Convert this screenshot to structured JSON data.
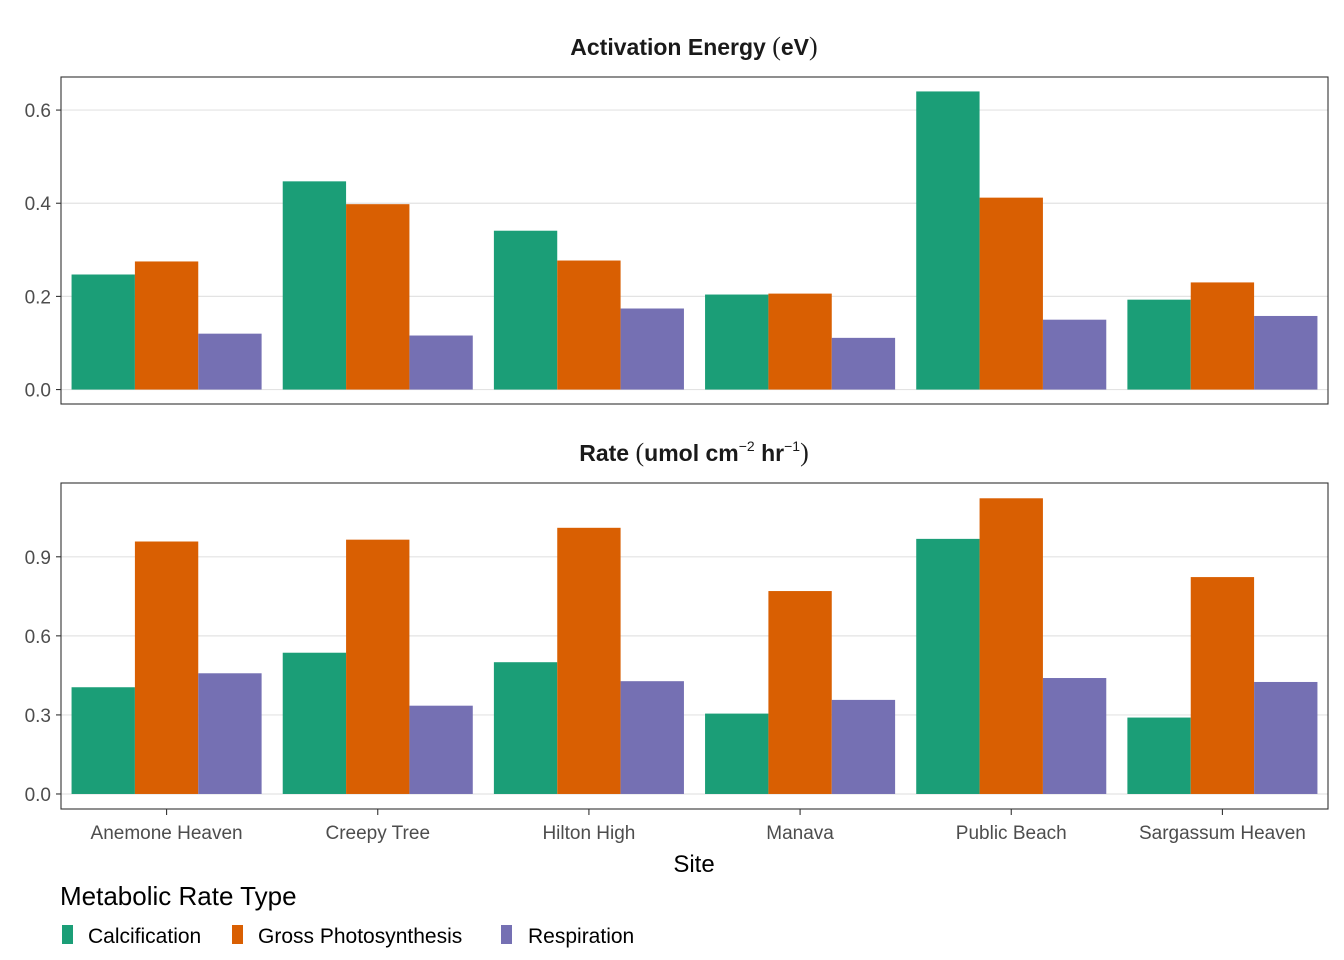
{
  "chart_data": [
    {
      "type": "bar",
      "title_text": "Activation Energy ",
      "title_unit": "eV",
      "categories": [
        "Anemone Heaven",
        "Creepy Tree",
        "Hilton High",
        "Manava",
        "Public Beach",
        "Sargassum Heaven"
      ],
      "series": [
        {
          "name": "Calcification",
          "color": "#1b9e77",
          "values": [
            0.247,
            0.447,
            0.341,
            0.204,
            0.64,
            0.193
          ]
        },
        {
          "name": "Gross Photosynthesis",
          "color": "#d95f02",
          "values": [
            0.275,
            0.398,
            0.277,
            0.206,
            0.412,
            0.23
          ]
        },
        {
          "name": "Respiration",
          "color": "#7570b3",
          "values": [
            0.12,
            0.116,
            0.174,
            0.111,
            0.15,
            0.158
          ]
        }
      ],
      "yticks": [
        "0.0",
        "0.2",
        "0.4",
        "0.6"
      ],
      "ylim": [
        -0.031,
        0.671
      ],
      "grid": true
    },
    {
      "type": "bar",
      "title_text": "Rate ",
      "title_unit_base": "umol cm",
      "title_unit_exp1": "−2",
      "title_unit_mid": " hr",
      "title_unit_exp2": "−1",
      "categories": [
        "Anemone Heaven",
        "Creepy Tree",
        "Hilton High",
        "Manava",
        "Public Beach",
        "Sargassum Heaven"
      ],
      "series": [
        {
          "name": "Calcification",
          "color": "#1b9e77",
          "values": [
            0.405,
            0.536,
            0.5,
            0.305,
            0.968,
            0.29
          ]
        },
        {
          "name": "Gross Photosynthesis",
          "color": "#d95f02",
          "values": [
            0.958,
            0.965,
            1.01,
            0.77,
            1.122,
            0.823
          ]
        },
        {
          "name": "Respiration",
          "color": "#7570b3",
          "values": [
            0.458,
            0.335,
            0.428,
            0.357,
            0.44,
            0.425
          ]
        }
      ],
      "yticks": [
        "0.0",
        "0.3",
        "0.6",
        "0.9"
      ],
      "ylim": [
        -0.057,
        1.18
      ],
      "grid": true
    }
  ],
  "xlabel": "Site",
  "legend": {
    "title": "Metabolic Rate Type",
    "position": "bottom-left",
    "items": [
      {
        "name": "Calcification",
        "color": "#1b9e77"
      },
      {
        "name": "Gross Photosynthesis",
        "color": "#d95f02"
      },
      {
        "name": "Respiration",
        "color": "#7570b3"
      }
    ]
  }
}
